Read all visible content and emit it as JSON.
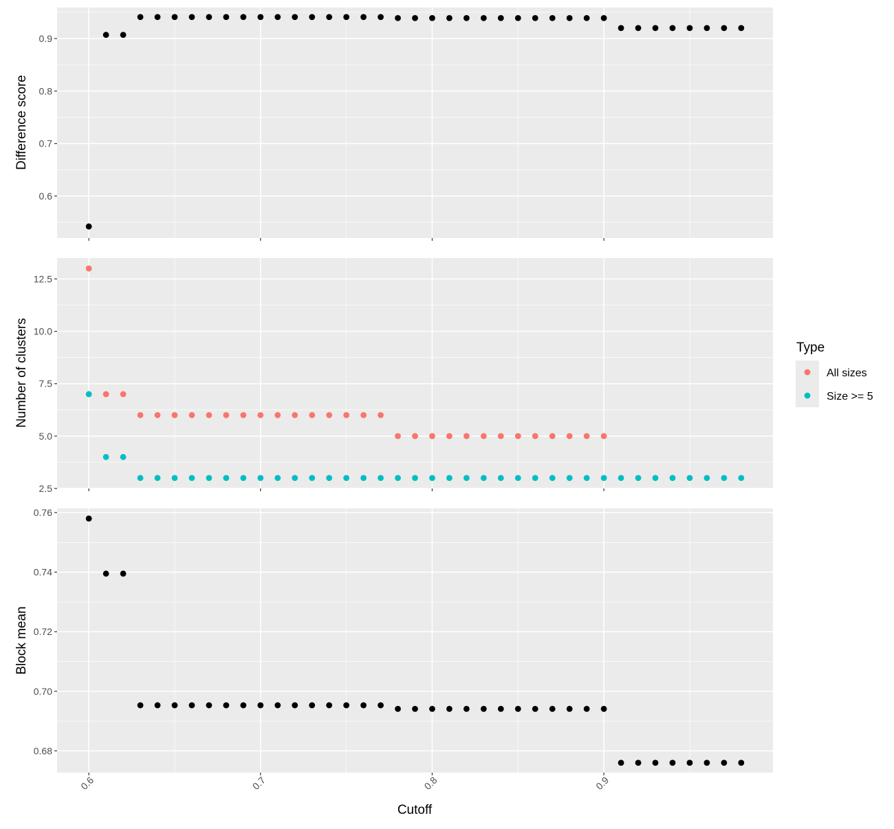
{
  "chart_data": {
    "type": "scatter",
    "xlabel": "Cutoff",
    "x_ticks": [
      "0.6",
      "0.7",
      "0.8",
      "0.9"
    ],
    "x_tick_values": [
      0.6,
      0.7,
      0.8,
      0.9
    ],
    "xlim": [
      0.5815,
      0.9985
    ],
    "x": [
      0.6,
      0.61,
      0.62,
      0.63,
      0.64,
      0.65,
      0.66,
      0.67,
      0.68,
      0.69,
      0.7,
      0.71,
      0.72,
      0.73,
      0.74,
      0.75,
      0.76,
      0.77,
      0.78,
      0.79,
      0.8,
      0.81,
      0.82,
      0.83,
      0.84,
      0.85,
      0.86,
      0.87,
      0.88,
      0.89,
      0.9,
      0.91,
      0.92,
      0.93,
      0.94,
      0.95,
      0.96,
      0.97,
      0.98
    ],
    "grid": true,
    "legend_position": "right",
    "legend": {
      "title": "Type",
      "entries": [
        {
          "label": "All sizes",
          "color": "#F8766D"
        },
        {
          "label": "Size >= 5",
          "color": "#00BFC4"
        }
      ]
    },
    "panels": [
      {
        "ylabel": "Difference score",
        "y_ticks": [
          "0.6",
          "0.7",
          "0.8",
          "0.9"
        ],
        "y_tick_values": [
          0.6,
          0.7,
          0.8,
          0.9
        ],
        "ylim": [
          0.52,
          0.959
        ],
        "series": [
          {
            "color": "#000000",
            "values": [
              0.542,
              0.907,
              0.907,
              0.941,
              0.941,
              0.941,
              0.941,
              0.941,
              0.941,
              0.941,
              0.941,
              0.941,
              0.941,
              0.941,
              0.941,
              0.941,
              0.941,
              0.941,
              0.939,
              0.939,
              0.939,
              0.939,
              0.939,
              0.939,
              0.939,
              0.939,
              0.939,
              0.939,
              0.939,
              0.939,
              0.939,
              0.92,
              0.92,
              0.92,
              0.92,
              0.92,
              0.92,
              0.92,
              0.92
            ]
          }
        ]
      },
      {
        "ylabel": "Number of clusters",
        "y_ticks": [
          "2.5",
          "5.0",
          "7.5",
          "10.0",
          "12.5"
        ],
        "y_tick_values": [
          2.5,
          5.0,
          7.5,
          10.0,
          12.5
        ],
        "ylim": [
          2.5,
          13.5
        ],
        "series": [
          {
            "name": "All sizes",
            "color": "#F8766D",
            "values": [
              13,
              7,
              7,
              6,
              6,
              6,
              6,
              6,
              6,
              6,
              6,
              6,
              6,
              6,
              6,
              6,
              6,
              6,
              5,
              5,
              5,
              5,
              5,
              5,
              5,
              5,
              5,
              5,
              5,
              5,
              5,
              null,
              null,
              null,
              null,
              null,
              null,
              null,
              null
            ]
          },
          {
            "name": "Size >= 5",
            "color": "#00BFC4",
            "values": [
              7,
              4,
              4,
              3,
              3,
              3,
              3,
              3,
              3,
              3,
              3,
              3,
              3,
              3,
              3,
              3,
              3,
              3,
              3,
              3,
              3,
              3,
              3,
              3,
              3,
              3,
              3,
              3,
              3,
              3,
              3,
              3,
              3,
              3,
              3,
              3,
              3,
              3,
              3
            ]
          }
        ]
      },
      {
        "ylabel": "Block mean",
        "y_ticks": [
          "0.68",
          "0.70",
          "0.72",
          "0.74",
          "0.76"
        ],
        "y_tick_values": [
          0.68,
          0.7,
          0.72,
          0.74,
          0.76
        ],
        "ylim": [
          0.6727,
          0.7614
        ],
        "series": [
          {
            "color": "#000000",
            "values": [
              0.758,
              0.7395,
              0.7395,
              0.6953,
              0.6953,
              0.6953,
              0.6953,
              0.6953,
              0.6953,
              0.6953,
              0.6953,
              0.6953,
              0.6953,
              0.6953,
              0.6953,
              0.6953,
              0.6953,
              0.6953,
              0.6941,
              0.6941,
              0.6941,
              0.6941,
              0.6941,
              0.6941,
              0.6941,
              0.6941,
              0.6941,
              0.6941,
              0.6941,
              0.6941,
              0.6941,
              0.676,
              0.676,
              0.676,
              0.676,
              0.676,
              0.676,
              0.676,
              0.676
            ]
          }
        ]
      }
    ]
  }
}
